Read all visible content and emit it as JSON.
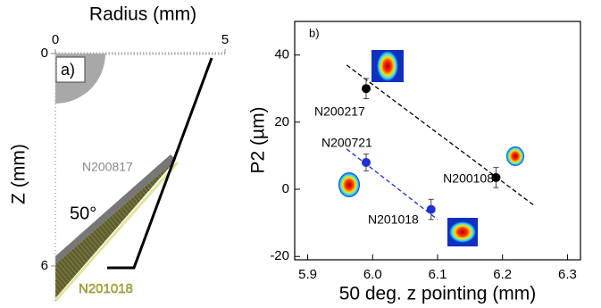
{
  "chart_data": [
    {
      "type": "schematic",
      "label": "a)",
      "xlabel": "Radius (mm)",
      "ylabel": "Z (mm)",
      "xlim": [
        0,
        5
      ],
      "xticks": [
        0,
        5
      ],
      "ylim": [
        0,
        7
      ],
      "yticks": [
        0,
        6
      ],
      "layers": [
        "N200817",
        "N201018"
      ],
      "angle_label": "50°"
    },
    {
      "type": "scatter",
      "label": "b)",
      "xlabel": "50 deg. z pointing (mm)",
      "ylabel": "P2 (µm)",
      "xlim": [
        5.88,
        6.32
      ],
      "xticks": [
        5.9,
        {
          "value": 6,
          "label": "6.0"
        },
        6.1,
        6.2,
        6.3
      ],
      "ylim": [
        -21,
        50
      ],
      "yticks": [
        -20,
        0,
        20,
        40
      ],
      "series": [
        {
          "color": "#000000",
          "labels": [
            "N200217",
            "N200108"
          ],
          "x": [
            5.99,
            6.19
          ],
          "values": [
            30,
            3.5
          ],
          "errors": [
            3,
            3
          ]
        },
        {
          "color": "#1f2fd0",
          "labels": [
            "N200721",
            "N201018"
          ],
          "x": [
            5.99,
            6.09
          ],
          "values": [
            8,
            -6
          ],
          "errors": [
            2.5,
            3
          ]
        }
      ],
      "fits": [
        {
          "color": "#000000",
          "x": [
            5.96,
            6.25
          ],
          "values": [
            37,
            -5
          ]
        },
        {
          "color": "#1f2fd0",
          "x": [
            5.96,
            6.1
          ],
          "values": [
            12,
            -9
          ]
        }
      ]
    }
  ]
}
